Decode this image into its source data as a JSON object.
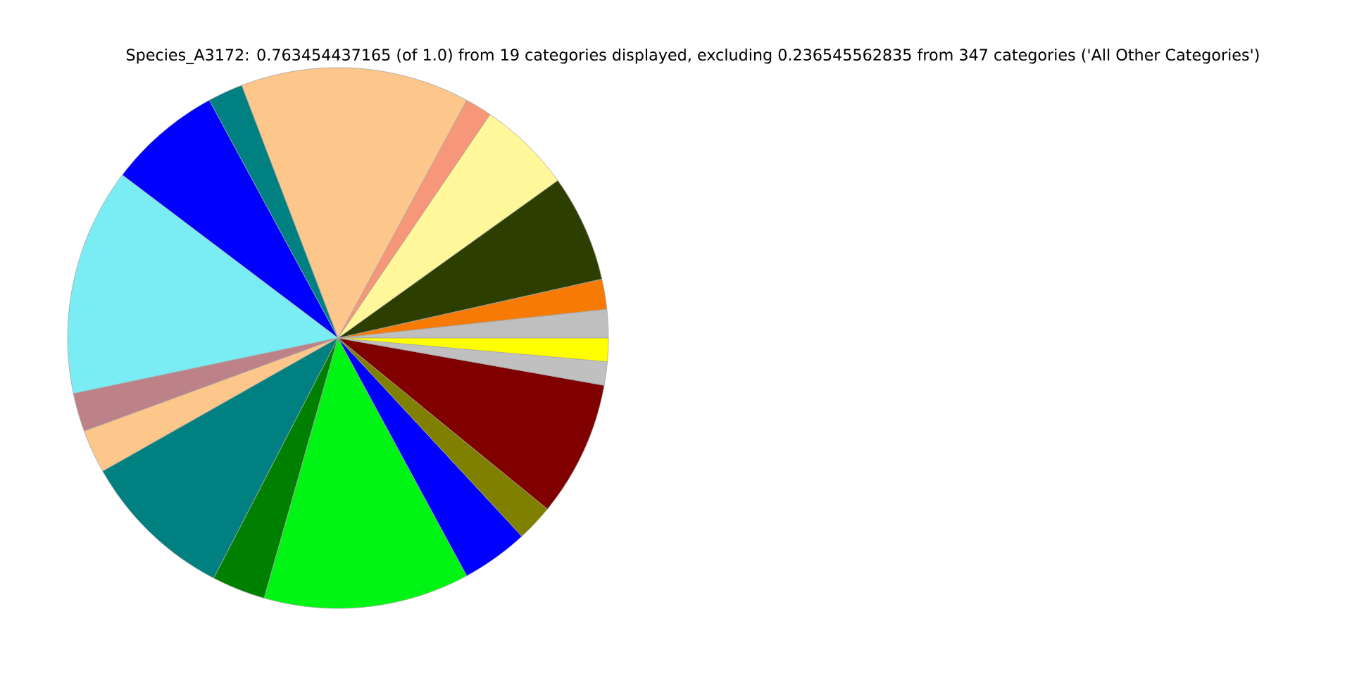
{
  "chart_data": {
    "type": "pie",
    "title": "Species_A3172: 0.763454437165 (of 1.0) from 19 categories displayed, excluding 0.236545562835 from 347 categories ('All Other Categories')",
    "categories": [
      null,
      null,
      null,
      null,
      null,
      null,
      null,
      null,
      null,
      null,
      null,
      null,
      null,
      null,
      null,
      null,
      null,
      null,
      null
    ],
    "values": [
      1.7,
      1.8,
      6.4,
      5.6,
      1.6,
      13.7,
      2.1,
      6.8,
      13.6,
      2.3,
      2.6,
      9.2,
      3.2,
      12.3,
      4.0,
      2.2,
      8.1,
      1.4,
      1.4
    ],
    "colors": [
      "#bfbfbf",
      "#f77a05",
      "#2c3e00",
      "#fff799",
      "#f7977a",
      "#fdc68a",
      "#008080",
      "#0000ff",
      "#7aecf4",
      "#bd8288",
      "#fdc68a",
      "#008080",
      "#008000",
      "#00f514",
      "#0000ff",
      "#808000",
      "#800000",
      "#c0c0c0",
      "#ffff00"
    ]
  }
}
